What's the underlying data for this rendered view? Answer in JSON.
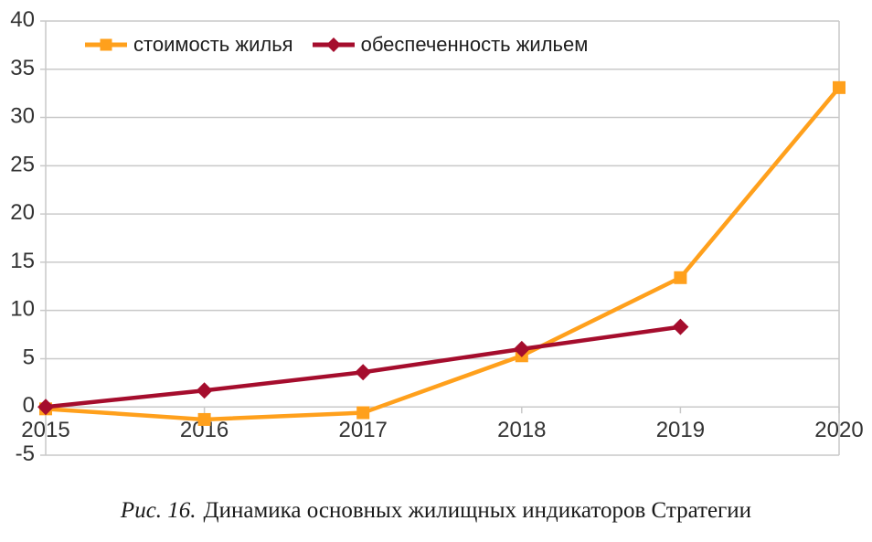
{
  "figure_caption": {
    "label": "Рис. 16.",
    "text": "Динамика основных жилищных индикаторов Стратегии"
  },
  "chart_data": {
    "type": "line",
    "title": "",
    "xlabel": "",
    "ylabel": "",
    "x": [
      "2015",
      "2016",
      "2017",
      "2018",
      "2019",
      "2020"
    ],
    "ylim": [
      -5,
      40
    ],
    "yticks": [
      40,
      35,
      30,
      25,
      20,
      15,
      10,
      5,
      0,
      -5
    ],
    "grid": "horizontal",
    "legend_position": "top-left-inside",
    "series": [
      {
        "name": "стоимость жилья",
        "color": "#FFA01C",
        "marker": "square",
        "values": [
          -0.2,
          -1.3,
          -0.6,
          5.3,
          13.4,
          33.1
        ]
      },
      {
        "name": "обеспеченность жильем",
        "color": "#A50D2D",
        "marker": "diamond",
        "values": [
          0,
          1.7,
          3.6,
          6,
          8.3,
          null
        ]
      }
    ],
    "colors": {
      "gridline": "#C9C9C9",
      "axis_label": "#333333"
    }
  }
}
